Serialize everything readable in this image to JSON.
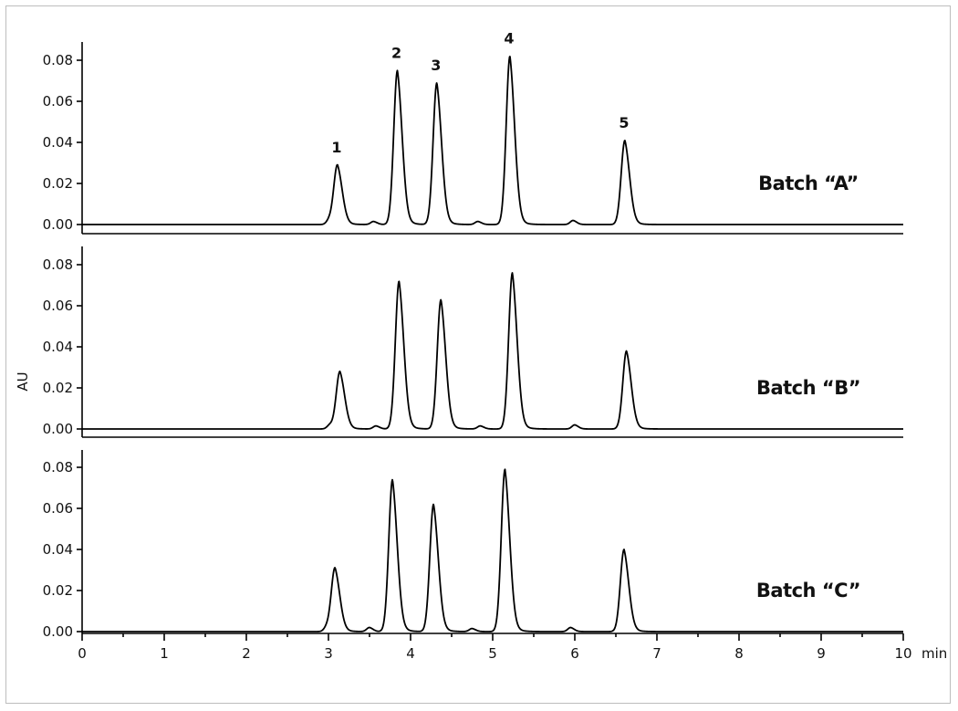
{
  "chart_data": {
    "type": "line",
    "ylabel": "AU",
    "xlabel": "",
    "x_unit": "min",
    "xlim": [
      0,
      10
    ],
    "ylim": [
      0,
      0.09
    ],
    "x_ticks": [
      "0",
      "1",
      "2",
      "3",
      "4",
      "5",
      "6",
      "7",
      "8",
      "9",
      "10"
    ],
    "y_ticks": [
      "0.00",
      "0.02",
      "0.04",
      "0.06",
      "0.08"
    ],
    "peak_labels": [
      "1",
      "2",
      "3",
      "4",
      "5"
    ],
    "series": [
      {
        "name": "Batch “A”",
        "peaks": [
          {
            "label": "1",
            "rt": 3.11,
            "height": 0.029
          },
          {
            "label": "2",
            "rt": 3.84,
            "height": 0.075
          },
          {
            "label": "3",
            "rt": 4.32,
            "height": 0.069
          },
          {
            "label": "4",
            "rt": 5.21,
            "height": 0.082
          },
          {
            "label": "5",
            "rt": 6.61,
            "height": 0.041
          }
        ],
        "minor_peaks": [
          {
            "rt": 3.01,
            "height": 0.002
          },
          {
            "rt": 3.55,
            "height": 0.0015
          },
          {
            "rt": 4.82,
            "height": 0.0015
          },
          {
            "rt": 5.98,
            "height": 0.002
          }
        ]
      },
      {
        "name": "Batch “B”",
        "peaks": [
          {
            "label": "1",
            "rt": 3.14,
            "height": 0.028
          },
          {
            "label": "2",
            "rt": 3.86,
            "height": 0.072
          },
          {
            "label": "3",
            "rt": 4.37,
            "height": 0.063
          },
          {
            "label": "4",
            "rt": 5.24,
            "height": 0.076
          },
          {
            "label": "5",
            "rt": 6.63,
            "height": 0.038
          }
        ],
        "minor_peaks": [
          {
            "rt": 3.02,
            "height": 0.002
          },
          {
            "rt": 3.58,
            "height": 0.0015
          },
          {
            "rt": 4.85,
            "height": 0.0015
          },
          {
            "rt": 6.0,
            "height": 0.002
          }
        ]
      },
      {
        "name": "Batch “C”",
        "peaks": [
          {
            "label": "1",
            "rt": 3.08,
            "height": 0.031
          },
          {
            "label": "2",
            "rt": 3.78,
            "height": 0.074
          },
          {
            "label": "3",
            "rt": 4.28,
            "height": 0.062
          },
          {
            "label": "4",
            "rt": 5.15,
            "height": 0.079
          },
          {
            "label": "5",
            "rt": 6.6,
            "height": 0.04
          }
        ],
        "minor_peaks": [
          {
            "rt": 2.98,
            "height": 0.002
          },
          {
            "rt": 3.5,
            "height": 0.002
          },
          {
            "rt": 4.75,
            "height": 0.0015
          },
          {
            "rt": 5.95,
            "height": 0.002
          }
        ]
      }
    ]
  }
}
